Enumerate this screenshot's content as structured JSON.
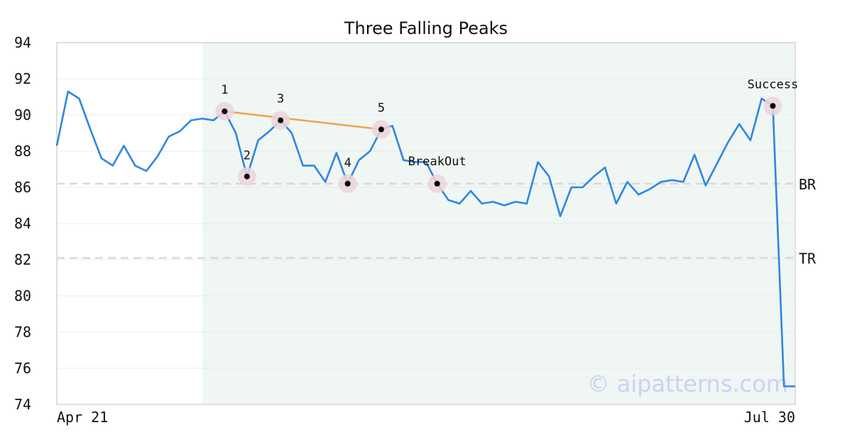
{
  "chart_data": {
    "type": "line",
    "title": "Three Falling Peaks",
    "xlabel": "",
    "ylabel": "",
    "ylim": [
      74,
      94
    ],
    "yticks": [
      74,
      76,
      78,
      80,
      82,
      84,
      86,
      88,
      90,
      92,
      94
    ],
    "grid": true,
    "x_tick_labels": [
      "Apr 21",
      "Jul 30"
    ],
    "colors": {
      "line": "#2f86e0",
      "trendline": "#f5a04a",
      "shade": "#eff6f3",
      "reference": "#d9d9d9",
      "marker_halo": "#ecd3db",
      "watermark": "#cdd1f5"
    },
    "series": [
      {
        "values": [
          88.3,
          91.3,
          90.9,
          89.2,
          87.6,
          87.2,
          88.3,
          87.2,
          86.9,
          87.7,
          88.8,
          89.1,
          89.7,
          89.8,
          89.7,
          90.2,
          89.0,
          86.6,
          88.6,
          89.1,
          89.7,
          89.0,
          87.2,
          87.2,
          86.3,
          87.9,
          86.2,
          87.5,
          88.0,
          89.2,
          89.4,
          87.5,
          87.4,
          87.4,
          86.2,
          85.3,
          85.1,
          85.8,
          85.1,
          85.2,
          85.0,
          85.2,
          85.1,
          87.4,
          86.6,
          84.4,
          86.0,
          86.0,
          86.6,
          87.1,
          85.1,
          86.3,
          85.6,
          85.9,
          86.3,
          86.4,
          86.3,
          87.8,
          86.1,
          87.3,
          88.5,
          89.5,
          88.6,
          90.9,
          90.5,
          75.0,
          75.0
        ]
      }
    ],
    "shaded_range": [
      13,
      66
    ],
    "reference_lines": [
      {
        "label": "BR",
        "value": 86.2
      },
      {
        "label": "TR",
        "value": 82.1
      }
    ],
    "trendline": [
      {
        "index": 15,
        "value": 90.2
      },
      {
        "index": 29,
        "value": 89.2
      }
    ],
    "points": [
      {
        "label": "1",
        "index": 15,
        "value": 90.2
      },
      {
        "label": "2",
        "index": 17,
        "value": 86.6
      },
      {
        "label": "3",
        "index": 20,
        "value": 89.7
      },
      {
        "label": "4",
        "index": 26,
        "value": 86.2
      },
      {
        "label": "5",
        "index": 29,
        "value": 89.2
      },
      {
        "label": "BreakOut",
        "index": 34,
        "value": 86.2
      },
      {
        "label": "Success",
        "index": 64,
        "value": 90.5
      }
    ]
  },
  "watermark": "© aipatterns.com"
}
